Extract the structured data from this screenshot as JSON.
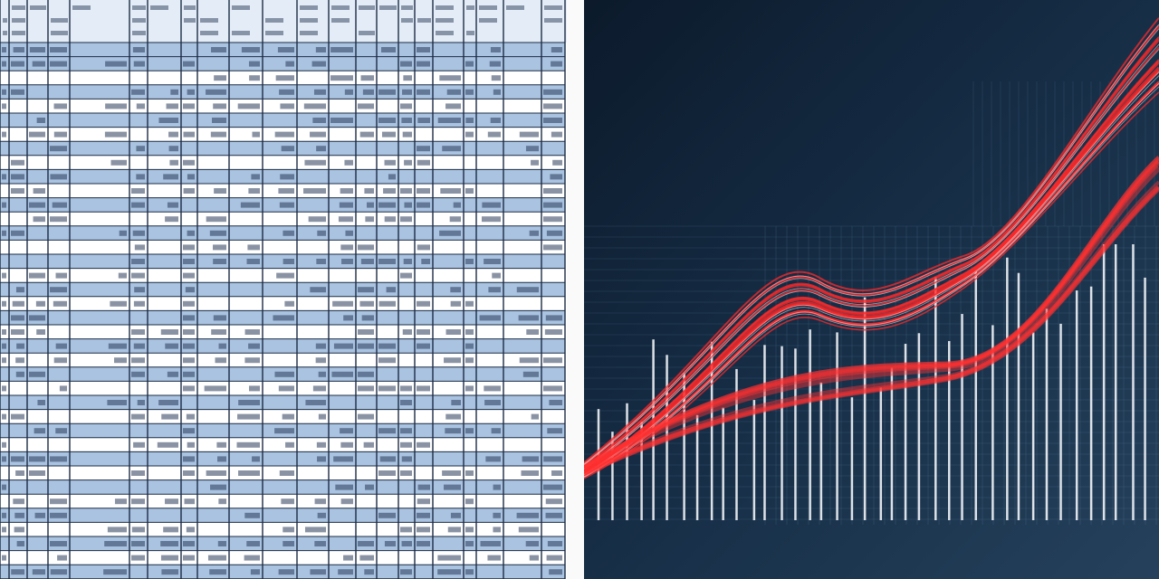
{
  "colors": {
    "row_shaded": "#a9c3e0",
    "row_plain": "#ffffff",
    "grid_line": "#1d2c45",
    "chart_background": "#15293f",
    "trend_line": "#ff2a2a",
    "bar": "#f2f4f8"
  }
}
